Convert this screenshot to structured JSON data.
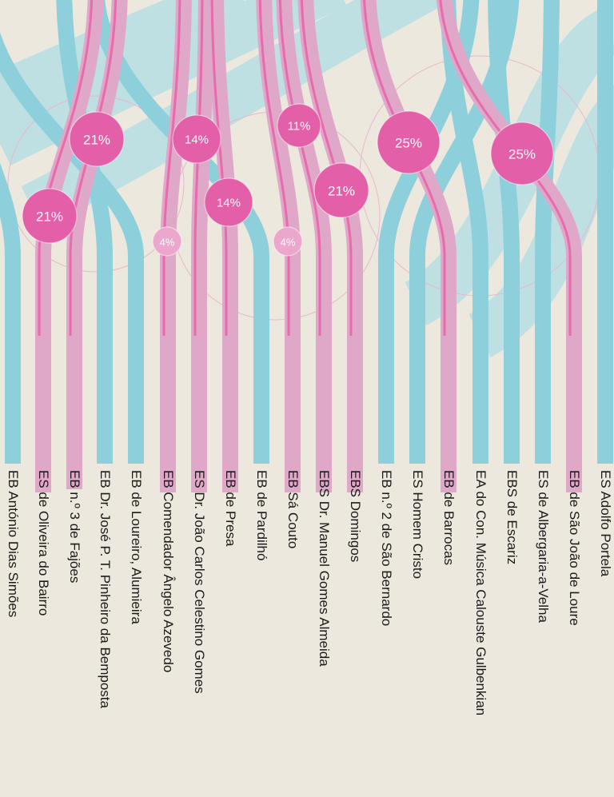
{
  "colors": {
    "background": "#ece8dd",
    "blue": "#8ecfdc",
    "blue_faded": "#bfe0e3",
    "pink": "#e0a8c8",
    "pink_accent": "#e860a8",
    "badge": "#e35fa7",
    "badge_light": "#eba8cc",
    "text": "#1a1a1a"
  },
  "schools": [
    {
      "name": "EB António Dias Simões",
      "flow": "blue"
    },
    {
      "name": "ES de Oliveira do Bairro",
      "flow": "pink"
    },
    {
      "name": "EB n.º 3 de Fajões",
      "flow": "pink"
    },
    {
      "name": "EB Dr. José P. T. Pinheiro da Bemposta",
      "flow": "blue"
    },
    {
      "name": "EB de Loureiro, Alumieira",
      "flow": "blue"
    },
    {
      "name": "EB Comendador Ângelo Azevedo",
      "flow": "pink"
    },
    {
      "name": "ES Dr. João Carlos Celestino Gomes",
      "flow": "pink"
    },
    {
      "name": "EB de Presa",
      "flow": "pink"
    },
    {
      "name": "EB de Pardilhó",
      "flow": "blue"
    },
    {
      "name": "EB Sá Couto",
      "flow": "pink"
    },
    {
      "name": "EBS Dr. Manuel Gomes Almeida",
      "flow": "pink"
    },
    {
      "name": "EBS Domingos",
      "flow": "pink"
    },
    {
      "name": "EB n.º 2 de São Bernardo",
      "flow": "blue"
    },
    {
      "name": "ES Homem Cristo",
      "flow": "blue"
    },
    {
      "name": "EB de Barrocas",
      "flow": "pink"
    },
    {
      "name": "EA do Con. Música Calouste Gulbenkian",
      "flow": "blue"
    },
    {
      "name": "EBS de Escariz",
      "flow": "blue"
    },
    {
      "name": "ES de Albergaria-a-Velha",
      "flow": "blue"
    },
    {
      "name": "EB de São João de Loure",
      "flow": "pink"
    },
    {
      "name": "ES Adolfo Portela",
      "flow": "blue"
    }
  ],
  "badges": [
    {
      "label": "21%",
      "tone": "strong"
    },
    {
      "label": "21%",
      "tone": "strong"
    },
    {
      "label": "4%",
      "tone": "light"
    },
    {
      "label": "14%",
      "tone": "strong"
    },
    {
      "label": "14%",
      "tone": "strong"
    },
    {
      "label": "11%",
      "tone": "strong"
    },
    {
      "label": "4%",
      "tone": "light"
    },
    {
      "label": "21%",
      "tone": "strong"
    },
    {
      "label": "25%",
      "tone": "strong"
    },
    {
      "label": "25%",
      "tone": "strong"
    }
  ]
}
